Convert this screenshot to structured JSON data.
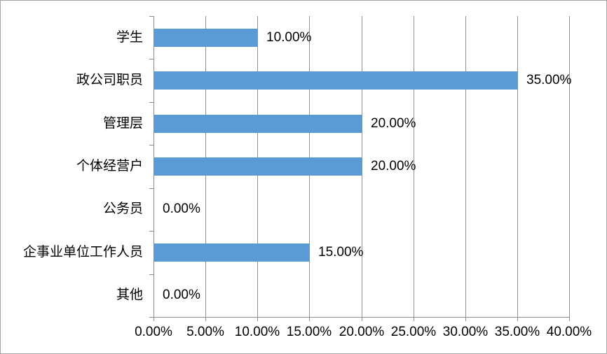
{
  "chart_data": {
    "type": "bar",
    "orientation": "horizontal",
    "title": "",
    "xlabel": "",
    "ylabel": "",
    "categories": [
      "学生",
      "政公司职员",
      "管理层",
      "个体经营户",
      "公务员",
      "企事业单位工作人员",
      "其他"
    ],
    "values": [
      10,
      35,
      20,
      20,
      0,
      15,
      0
    ],
    "value_labels": [
      "10.00%",
      "35.00%",
      "20.00%",
      "20.00%",
      "0.00%",
      "15.00%",
      "0.00%"
    ],
    "x_ticks": [
      "0.00%",
      "5.00%",
      "10.00%",
      "15.00%",
      "20.00%",
      "25.00%",
      "30.00%",
      "35.00%",
      "40.00%"
    ],
    "xlim": [
      0,
      40
    ],
    "x_tick_step": 5,
    "grid": "vertical-only",
    "legend": "none",
    "colors": {
      "bar": "#5b9bd5",
      "gridline": "#919191",
      "axis": "#8c8c8c",
      "frame_border": "#a3a3a3",
      "text": "#000000",
      "background": "#ffffff"
    }
  }
}
